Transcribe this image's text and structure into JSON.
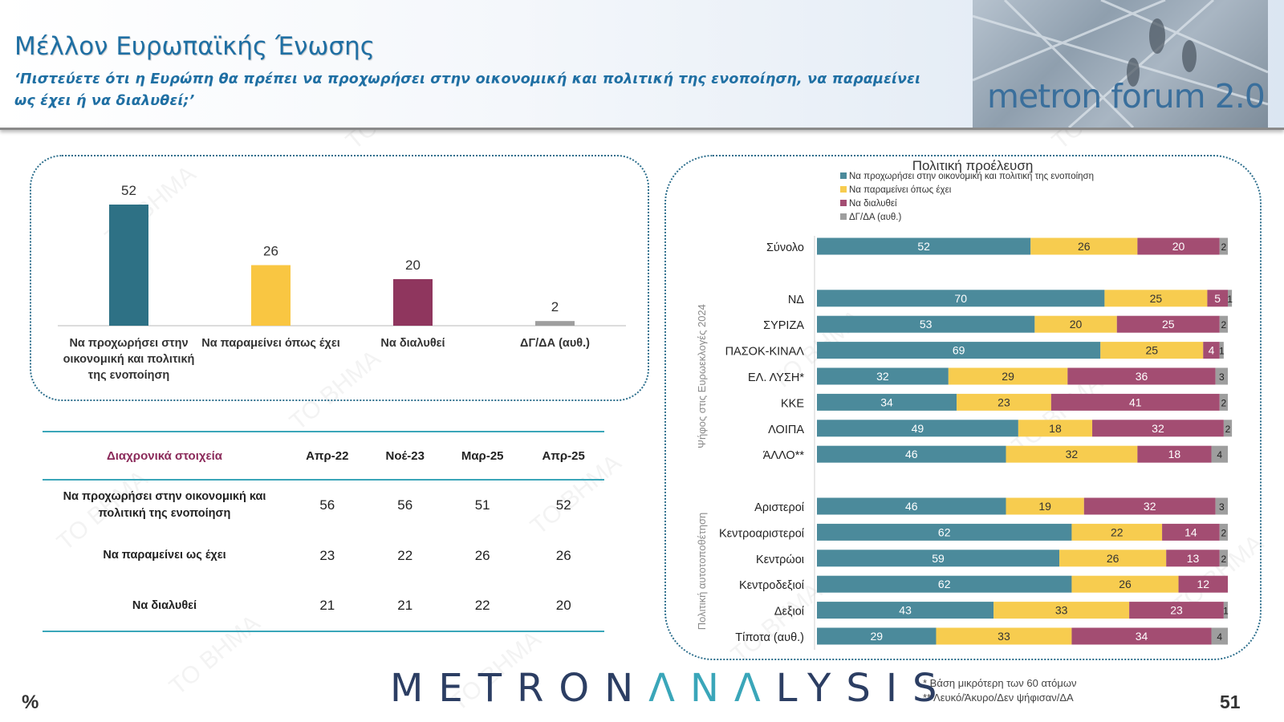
{
  "header": {
    "title": "Μέλλον Ευρωπαϊκής Ένωσης",
    "subtitle": "‘Πιστεύετε ότι η Ευρώπη θα πρέπει να προχωρήσει στην οικονομική και πολιτική της ενοποίηση, να παραμείνει ως έχει ή να διαλυθεί;’",
    "logo_text": "metron forum 2.0"
  },
  "colors": {
    "teal": "#2e7185",
    "yellow": "#f9c642",
    "maroon": "#8f365e",
    "gray": "#9e9e9e",
    "teal_light": "#4b8a9b",
    "yellow_light": "#f7cc4f",
    "maroon_light": "#a34d72"
  },
  "chart_data": [
    {
      "type": "bar",
      "categories": [
        "Να προχωρήσει στην οικονομική και πολιτική της ενοποίηση",
        "Να παραμείνει όπως έχει",
        "Να διαλυθεί",
        "ΔΓ/ΔΑ (αυθ.)"
      ],
      "values": [
        52,
        26,
        20,
        2
      ],
      "ylim": [
        0,
        60
      ],
      "grid": false
    },
    {
      "type": "bar",
      "orientation": "horizontal-stacked",
      "title": "Πολιτική προέλευση",
      "legend_position": "top",
      "series": [
        {
          "name": "Να προχωρήσει στην οικονομική και πολιτική της ενοποίηση",
          "color": "#4b8a9b"
        },
        {
          "name": "Να παραμείνει όπως έχει",
          "color": "#f7cc4f"
        },
        {
          "name": "Να διαλυθεί",
          "color": "#a34d72"
        },
        {
          "name": "ΔΓ/ΔΑ (αυθ.)",
          "color": "#9e9e9e"
        }
      ],
      "groups": [
        {
          "label": "",
          "rows": [
            {
              "label": "Σύνολο",
              "values": [
                52,
                26,
                20,
                2
              ]
            }
          ]
        },
        {
          "label": "Ψήφος στις Ευρωεκλογές 2024",
          "rows": [
            {
              "label": "ΝΔ",
              "values": [
                70,
                25,
                5,
                1
              ]
            },
            {
              "label": "ΣΥΡΙΖΑ",
              "values": [
                53,
                20,
                25,
                2
              ]
            },
            {
              "label": "ΠΑΣΟΚ-ΚΙΝΑΛ",
              "values": [
                69,
                25,
                4,
                1
              ]
            },
            {
              "label": "ΕΛ. ΛΥΣΗ*",
              "values": [
                32,
                29,
                36,
                3
              ]
            },
            {
              "label": "ΚΚΕ",
              "values": [
                34,
                23,
                41,
                2
              ]
            },
            {
              "label": "ΛΟΙΠΑ",
              "values": [
                49,
                18,
                32,
                2
              ]
            },
            {
              "label": "ΆΛΛΟ**",
              "values": [
                46,
                32,
                18,
                4
              ]
            }
          ]
        },
        {
          "label": "Πολιτική αυτοτοποθέτηση",
          "rows": [
            {
              "label": "Αριστεροί",
              "values": [
                46,
                19,
                32,
                3
              ]
            },
            {
              "label": "Κεντροαριστεροί",
              "values": [
                62,
                22,
                14,
                2
              ]
            },
            {
              "label": "Κεντρώοι",
              "values": [
                59,
                26,
                13,
                2
              ]
            },
            {
              "label": "Κεντροδεξιοί",
              "values": [
                62,
                26,
                12,
                null
              ]
            },
            {
              "label": "Δεξιοί",
              "values": [
                43,
                33,
                23,
                1
              ]
            },
            {
              "label": "Τίποτα (αυθ.)",
              "values": [
                29,
                33,
                34,
                4
              ]
            }
          ]
        }
      ],
      "xlim": [
        0,
        100
      ]
    },
    {
      "type": "table",
      "title": "Διαχρονικά στοιχεία",
      "columns": [
        "Απρ-22",
        "Νοέ-23",
        "Μαρ-25",
        "Απρ-25"
      ],
      "rows": [
        {
          "label": "Να προχωρήσει στην οικονομική και πολιτική της ενοποίηση",
          "values": [
            "56",
            "56",
            "51",
            "52"
          ]
        },
        {
          "label": "Να παραμείνει ως έχει",
          "values": [
            "23",
            "22",
            "26",
            "26"
          ]
        },
        {
          "label": "Να διαλυθεί",
          "values": [
            "21",
            "21",
            "22",
            "20"
          ]
        }
      ]
    }
  ],
  "footer": {
    "logo_part1": "METRON",
    "logo_part2": "ΛNΛ",
    "logo_part3": "LYSIS",
    "note1": "*  Βάση μικρότερη των 60 ατόμων",
    "note2": "** Λευκό/Άκυρο/Δεν ψήφισαν/ΔΑ",
    "percent": "%",
    "page_number": "51"
  },
  "watermark_text": "TO BHMA"
}
